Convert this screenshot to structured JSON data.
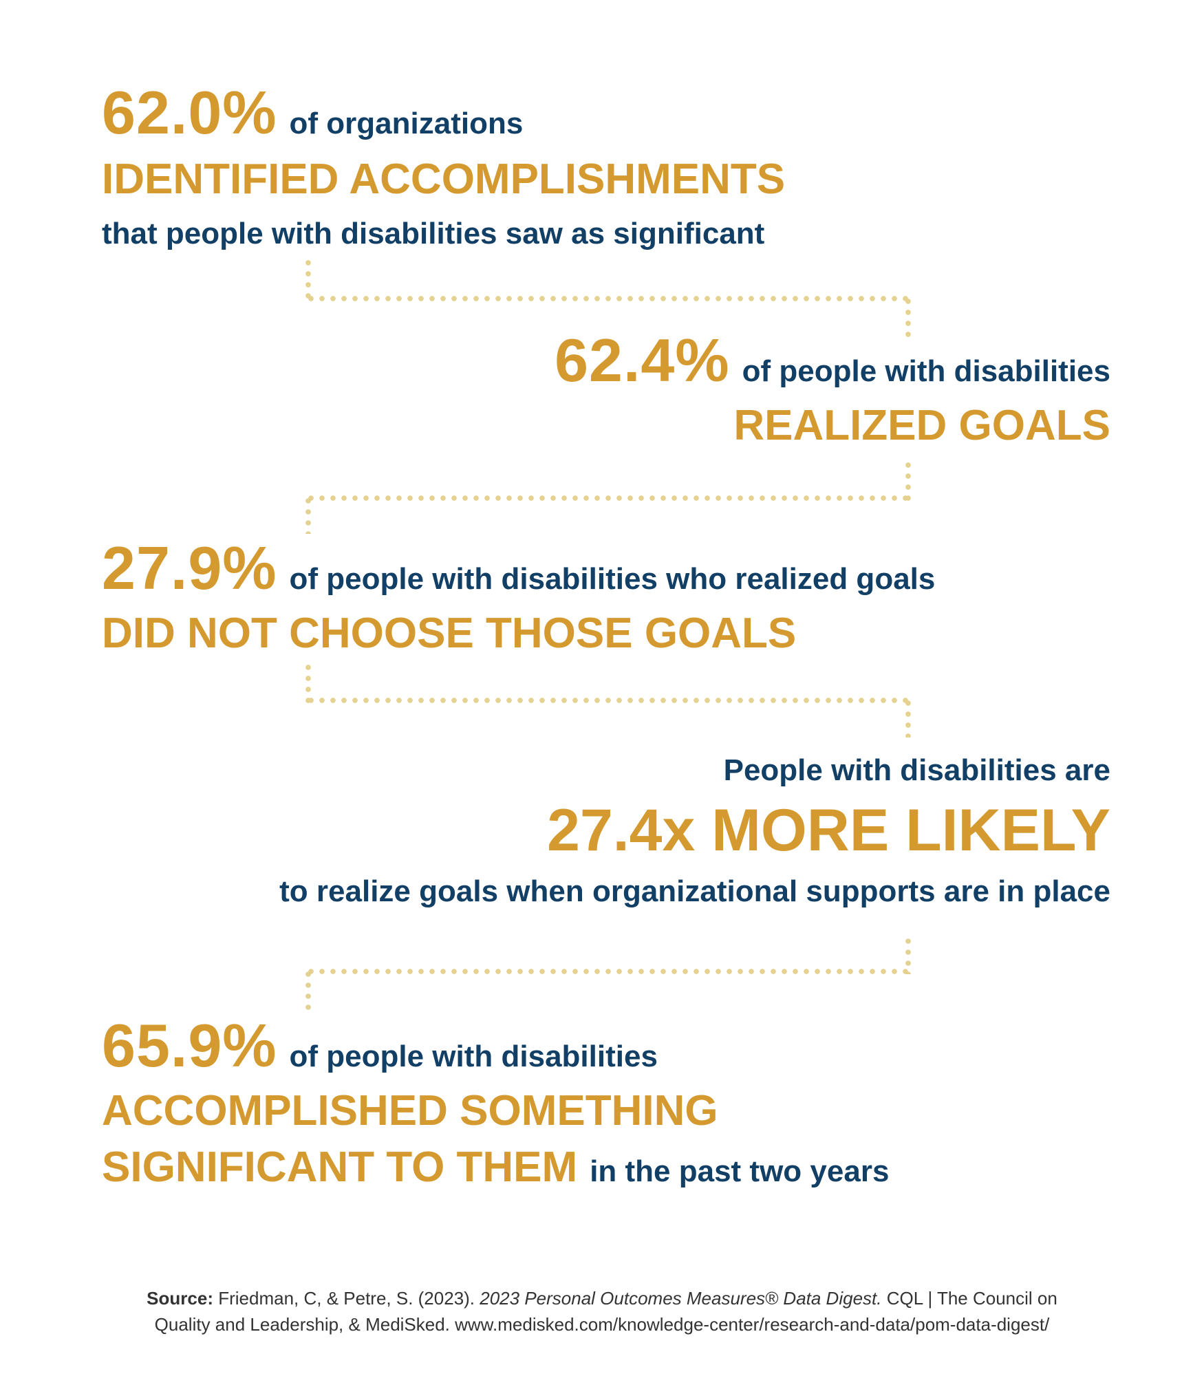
{
  "stats": [
    {
      "number": "62.0%",
      "text": "of organizations",
      "highlight": "IDENTIFIED ACCOMPLISHMENTS",
      "tail": "that people with disabilities saw as significant"
    },
    {
      "number": "62.4%",
      "text": "of people with disabilities",
      "highlight": "REALIZED GOALS"
    },
    {
      "number": "27.9%",
      "text": "of people with disabilities who realized goals",
      "highlight": "DID NOT CHOOSE THOSE GOALS"
    },
    {
      "lead": "People with disabilities are",
      "highlight": "27.4x MORE LIKELY",
      "tail": "to realize goals when organizational supports are in place"
    },
    {
      "number": "65.9%",
      "text": "of people with disabilities",
      "highlight_line1": "ACCOMPLISHED SOMETHING",
      "highlight_line2": "SIGNIFICANT TO THEM",
      "tail": "in the past two years"
    }
  ],
  "source": {
    "label": "Source:",
    "authors": "Friedman, C, & Petre, S. (2023).",
    "title": "2023 Personal Outcomes Measures® Data Digest.",
    "publisher_line1": "CQL | The Council on",
    "publisher_line2": "Quality and Leadership, & MediSked. www.medisked.com/knowledge-center/research-and-data/pom-data-digest/"
  },
  "colors": {
    "gold": "#D49A30",
    "navy": "#123F66",
    "dots": "#E6D290"
  }
}
